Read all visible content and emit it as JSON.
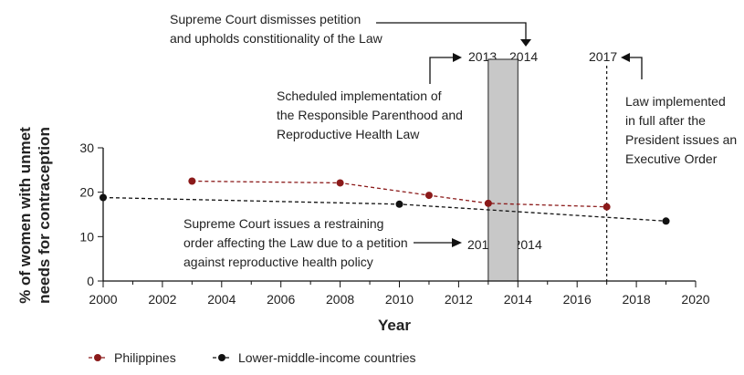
{
  "chart_data": {
    "type": "line",
    "title": "",
    "xlabel": "Year",
    "ylabel_line1": "% of women with unmet",
    "ylabel_line2": "needs for contraception",
    "xlim": [
      2000,
      2020
    ],
    "ylim": [
      0,
      30
    ],
    "x_ticks": [
      2000,
      2002,
      2004,
      2006,
      2008,
      2010,
      2012,
      2014,
      2016,
      2018,
      2020
    ],
    "y_ticks": [
      0,
      10,
      20,
      30
    ],
    "grid": false,
    "legend_position": "bottom-left",
    "series": [
      {
        "name": "Philippines",
        "color": "#8b1a1a",
        "x": [
          2003,
          2008,
          2011,
          2013,
          2017
        ],
        "y": [
          22.5,
          22.1,
          19.3,
          17.5,
          16.7
        ]
      },
      {
        "name": "Lower-middle-income countries",
        "color": "#111111",
        "x": [
          2000,
          2010,
          2019
        ],
        "y": [
          18.8,
          17.3,
          13.5
        ]
      }
    ],
    "shaded_region": {
      "from": 2013,
      "to": 2014,
      "color": "#c8c8c8"
    },
    "vline": {
      "x": 2017
    },
    "annotations": {
      "scotus_dismiss": [
        "Supreme Court dismisses petition",
        "and upholds constitionality of the Law"
      ],
      "scheduled": [
        "Scheduled implementation of",
        "the Responsible Parenthood and",
        "Reproductive Health Law"
      ],
      "law_full": [
        "Law implemented",
        "in full after the",
        "President issues an",
        "Executive Order"
      ],
      "restraining": [
        "Supreme Court issues a restraining",
        "order affecting the Law due to a petition",
        "against reproductive health policy"
      ],
      "year_2013": "2013",
      "year_2014": "2014",
      "year_2017": "2017",
      "range_2013_2014": "2013 to 2014"
    }
  }
}
